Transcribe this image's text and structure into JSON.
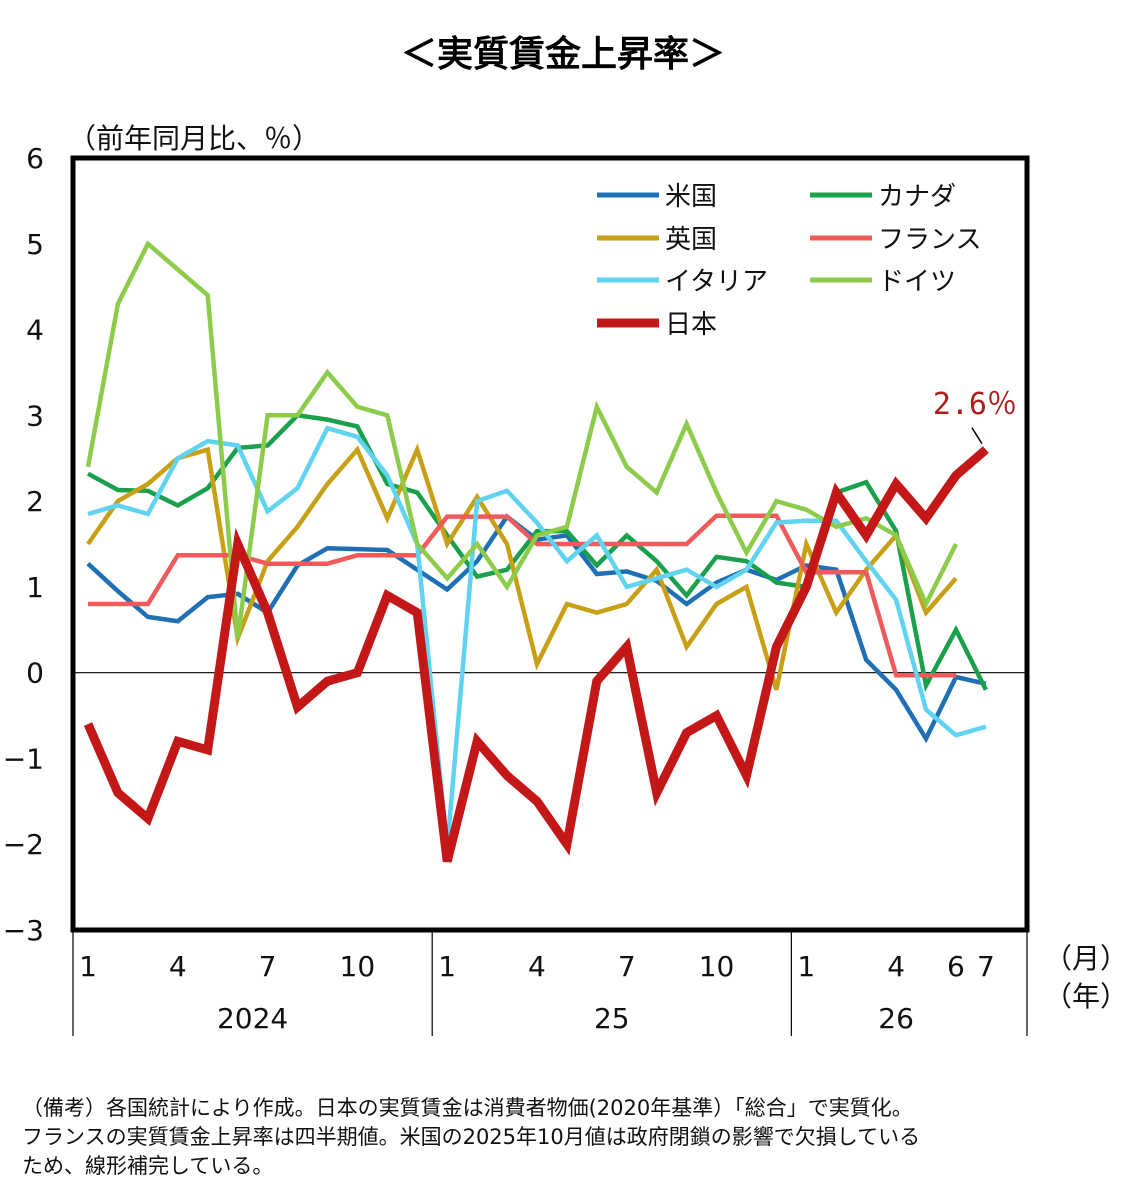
{
  "chart_data": {
    "type": "line",
    "title": "＜実質賃金上昇率＞",
    "ylabel": "（前年同月比、％）",
    "x_unit_month": "（月）",
    "x_unit_year": "（年）",
    "ylim": [
      -3,
      6
    ],
    "yticks": [
      "6",
      "5",
      "4",
      "3",
      "2",
      "1",
      "0",
      "−1",
      "−2",
      "−3"
    ],
    "ytick_values": [
      6,
      5,
      4,
      3,
      2,
      1,
      0,
      -1,
      -2,
      -3
    ],
    "month_ticks": [
      {
        "idx": 0,
        "label": "1"
      },
      {
        "idx": 3,
        "label": "4"
      },
      {
        "idx": 6,
        "label": "7"
      },
      {
        "idx": 9,
        "label": "10"
      },
      {
        "idx": 12,
        "label": "1"
      },
      {
        "idx": 15,
        "label": "4"
      },
      {
        "idx": 18,
        "label": "7"
      },
      {
        "idx": 21,
        "label": "10"
      },
      {
        "idx": 24,
        "label": "1"
      },
      {
        "idx": 27,
        "label": "4"
      },
      {
        "idx": 29,
        "label": "6"
      },
      {
        "idx": 30,
        "label": "7"
      }
    ],
    "years": [
      {
        "label": "2024",
        "start": 0,
        "end": 11
      },
      {
        "label": "25",
        "start": 12,
        "end": 23
      },
      {
        "label": "26",
        "start": 24,
        "end": 30
      }
    ],
    "series": [
      {
        "name": "米国",
        "color": "#1f6fb5",
        "values": [
          1.27,
          0.95,
          0.65,
          0.6,
          0.88,
          0.92,
          0.7,
          1.25,
          1.45,
          1.44,
          1.43,
          1.2,
          0.97,
          1.3,
          1.82,
          1.55,
          1.6,
          1.15,
          1.18,
          1.07,
          0.8,
          1.05,
          1.2,
          1.08,
          1.25,
          1.2,
          0.15,
          -0.2,
          -0.77,
          -0.05,
          -0.13
        ]
      },
      {
        "name": "カナダ",
        "color": "#1aa04a",
        "values": [
          2.32,
          2.13,
          2.12,
          1.95,
          2.15,
          2.62,
          2.65,
          3.0,
          2.95,
          2.87,
          2.2,
          2.1,
          1.6,
          1.12,
          1.2,
          1.65,
          1.65,
          1.25,
          1.6,
          1.3,
          0.9,
          1.35,
          1.3,
          1.05,
          1.0,
          2.1,
          2.22,
          1.65,
          -0.15,
          0.5,
          -0.2
        ]
      },
      {
        "name": "英国",
        "color": "#c8a016",
        "values": [
          1.5,
          2.0,
          2.2,
          2.5,
          2.6,
          0.4,
          1.3,
          1.7,
          2.2,
          2.6,
          1.8,
          2.6,
          1.5,
          2.05,
          1.5,
          0.1,
          0.8,
          0.7,
          0.8,
          1.2,
          0.3,
          0.8,
          1.0,
          -0.2,
          1.5,
          0.7,
          1.2,
          1.6,
          0.7,
          1.1,
          null
        ]
      },
      {
        "name": "フランス",
        "color": "#f05a5a",
        "values": [
          0.8,
          0.8,
          0.8,
          1.37,
          1.37,
          1.37,
          1.27,
          1.27,
          1.27,
          1.37,
          1.37,
          1.37,
          1.82,
          1.82,
          1.82,
          1.5,
          1.5,
          1.5,
          1.5,
          1.5,
          1.5,
          1.83,
          1.83,
          1.83,
          1.17,
          1.17,
          1.17,
          -0.03,
          -0.03,
          -0.03,
          null
        ]
      },
      {
        "name": "イタリア",
        "color": "#5fd3f0",
        "values": [
          1.85,
          1.95,
          1.85,
          2.5,
          2.7,
          2.65,
          1.88,
          2.15,
          2.85,
          2.75,
          2.3,
          1.5,
          -2.05,
          2.0,
          2.12,
          1.75,
          1.3,
          1.6,
          1.0,
          1.1,
          1.2,
          1.0,
          1.2,
          1.75,
          1.77,
          1.77,
          1.3,
          0.85,
          -0.43,
          -0.73,
          -0.63
        ]
      },
      {
        "name": "ドイツ",
        "color": "#8ccc4a",
        "values": [
          2.4,
          4.3,
          5.0,
          4.7,
          4.4,
          0.4,
          3.0,
          3.0,
          3.5,
          3.1,
          3.0,
          1.5,
          1.1,
          1.5,
          1.0,
          1.6,
          1.7,
          3.1,
          2.4,
          2.1,
          2.9,
          2.1,
          1.4,
          2.0,
          1.9,
          1.7,
          1.8,
          1.6,
          0.8,
          1.5,
          null
        ]
      },
      {
        "name": "日本",
        "color": "#c41818",
        "values": [
          -0.6,
          -1.4,
          -1.7,
          -0.8,
          -0.9,
          1.5,
          0.7,
          -0.4,
          -0.1,
          0.0,
          0.9,
          0.7,
          -2.2,
          -0.8,
          -1.2,
          -1.5,
          -2.0,
          -0.1,
          0.3,
          -1.4,
          -0.7,
          -0.5,
          -1.2,
          0.3,
          1.0,
          2.1,
          1.6,
          2.2,
          1.8,
          2.3,
          2.6
        ]
      }
    ],
    "annotation": "2.6％",
    "grid": false,
    "legend_position": "top-right"
  },
  "note": {
    "lines": [
      "（備考）各国統計により作成。日本の実質賃金は消費者物価(2020年基準）「総合」で実質化。",
      "フランスの実質賃金上昇率は四半期値。米国の2025年10月値は政府閉鎖の影響で欠損している",
      "ため、線形補完している。"
    ]
  }
}
